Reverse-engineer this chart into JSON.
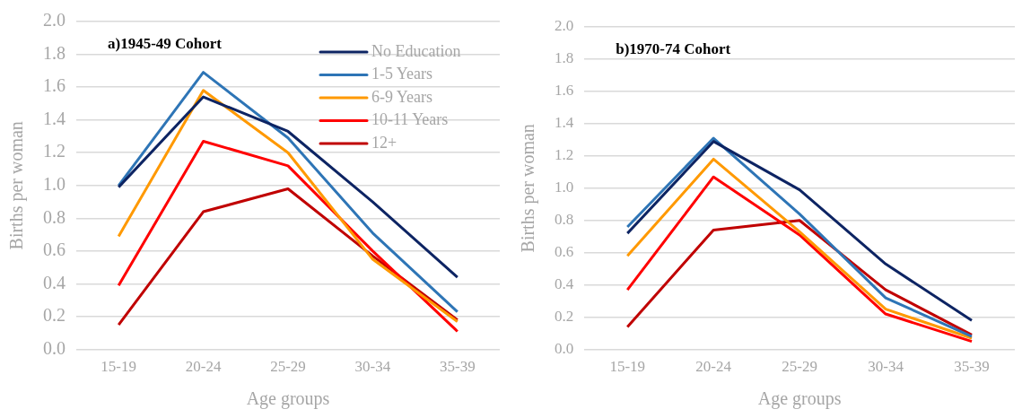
{
  "chart_data": [
    {
      "type": "line",
      "title": "a)1945-49 Cohort",
      "xlabel": "Age groups",
      "ylabel": "Births per woman",
      "categories": [
        "15-19",
        "20-24",
        "25-29",
        "30-34",
        "35-39"
      ],
      "series": [
        {
          "name": "No Education",
          "color": "#0d2463",
          "values": [
            0.99,
            1.54,
            1.33,
            0.9,
            0.44
          ]
        },
        {
          "name": "1-5 Years",
          "color": "#2e75b6",
          "values": [
            1.0,
            1.69,
            1.29,
            0.71,
            0.23
          ]
        },
        {
          "name": "6-9 Years",
          "color": "#ff9900",
          "values": [
            0.69,
            1.58,
            1.2,
            0.55,
            0.17
          ]
        },
        {
          "name": "10-11 Years",
          "color": "#ff0000",
          "values": [
            0.39,
            1.27,
            1.12,
            0.6,
            0.11
          ]
        },
        {
          "name": "12+",
          "color": "#c00000",
          "values": [
            0.15,
            0.84,
            0.98,
            0.57,
            0.18
          ]
        }
      ],
      "ylim": [
        0,
        2
      ],
      "yticks": [
        {
          "value": 0,
          "label": "0.0"
        },
        0.2,
        0.4,
        0.6,
        0.8,
        {
          "value": 1,
          "label": "1.0"
        },
        1.2,
        1.4,
        1.6,
        1.8,
        {
          "value": 2,
          "label": "2.0"
        }
      ],
      "grid": "y",
      "legend": "top right",
      "marker": "none",
      "line_style": "solid"
    },
    {
      "type": "line",
      "title": "b)1970-74 Cohort",
      "xlabel": "Age groups",
      "ylabel": "Births per woman",
      "categories": [
        "15-19",
        "20-24",
        "25-29",
        "30-34",
        "35-39"
      ],
      "series": [
        {
          "color": "#0d2463",
          "values": [
            0.72,
            1.29,
            0.99,
            0.53,
            0.18
          ]
        },
        {
          "color": "#2e75b6",
          "values": [
            0.76,
            1.31,
            0.84,
            0.32,
            0.08
          ]
        },
        {
          "color": "#ff9900",
          "values": [
            0.58,
            1.18,
            0.73,
            0.25,
            0.07
          ]
        },
        {
          "color": "#ff0000",
          "values": [
            0.37,
            1.07,
            0.71,
            0.22,
            0.05
          ]
        },
        {
          "color": "#c00000",
          "values": [
            0.14,
            0.74,
            0.8,
            0.37,
            0.09
          ]
        }
      ],
      "ylim": [
        0,
        2
      ],
      "yticks": [
        {
          "value": 0,
          "label": "0.0"
        },
        0.2,
        0.4,
        0.6,
        0.8,
        {
          "value": 1,
          "label": "1.0"
        },
        1.2,
        1.4,
        1.6,
        1.8,
        {
          "value": 2,
          "label": "2.0"
        }
      ],
      "grid": "y",
      "marker": "none",
      "line_style": "solid"
    }
  ]
}
